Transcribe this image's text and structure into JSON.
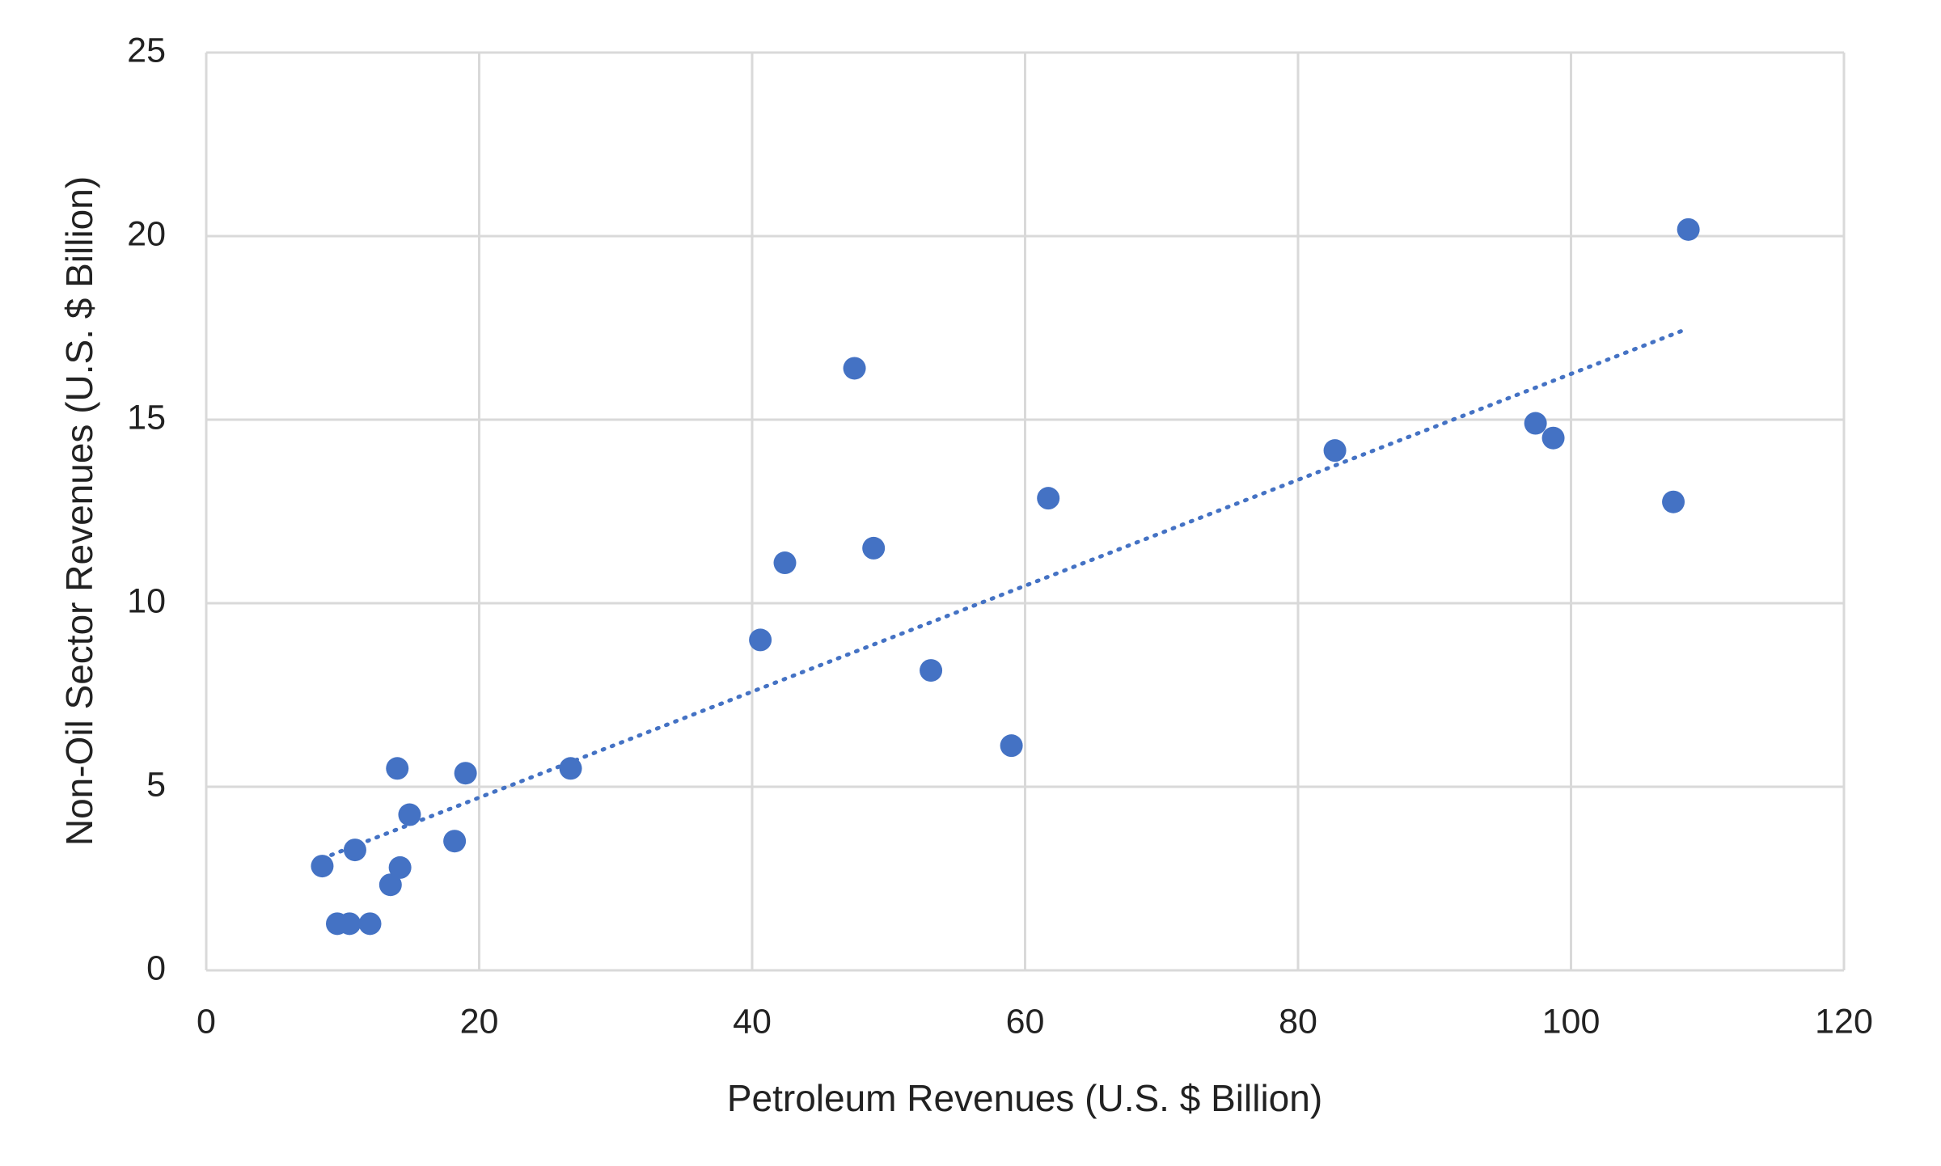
{
  "chart_data": {
    "type": "scatter",
    "x_label": "Petroleum Revenues (U.S. $ Billion)",
    "y_label": "Non-Oil Sector Revenues (U.S. $ Billion)",
    "x": [
      8.5,
      9.6,
      10.5,
      10.9,
      12.0,
      13.5,
      14.0,
      14.2,
      14.9,
      18.2,
      19.0,
      26.7,
      40.6,
      42.4,
      47.5,
      48.9,
      53.1,
      59.0,
      61.7,
      82.7,
      97.4,
      98.7,
      107.5,
      108.6
    ],
    "values": [
      2.84,
      1.27,
      1.27,
      3.28,
      1.27,
      2.33,
      5.5,
      2.8,
      4.24,
      3.52,
      5.37,
      5.5,
      9.0,
      11.1,
      16.4,
      11.5,
      8.17,
      6.12,
      12.86,
      14.16,
      14.9,
      14.5,
      12.76,
      20.18
    ],
    "color": "#4472c4",
    "trendline": "linear",
    "xlim": [
      0,
      120
    ],
    "xticks": [
      0,
      20,
      40,
      60,
      80,
      100,
      120
    ],
    "ylim": [
      0,
      25
    ],
    "yticks": [
      0,
      5,
      10,
      15,
      20,
      25
    ],
    "grid": true
  }
}
